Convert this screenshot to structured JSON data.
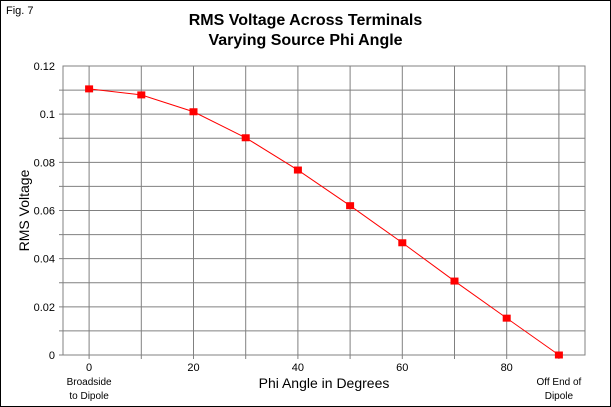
{
  "figure_label": "Fig. 7",
  "chart_data": {
    "type": "line",
    "title": [
      "RMS Voltage Across Terminals",
      "Varying Source Phi Angle"
    ],
    "xlabel": "Phi Angle in Degrees",
    "ylabel": "RMS Voltage",
    "xlim": [
      -5,
      95
    ],
    "ylim": [
      0,
      0.12
    ],
    "grid": true,
    "x_ticks": [
      0,
      20,
      40,
      60,
      80
    ],
    "x_tick_labels": [
      "0",
      "20",
      "40",
      "60",
      "80"
    ],
    "y_ticks": [
      0,
      0.02,
      0.04,
      0.06,
      0.08,
      0.1,
      0.12
    ],
    "y_tick_labels": [
      "0",
      "0.02",
      "0.04",
      "0.06",
      "0.08",
      "0.1",
      "0.12"
    ],
    "annotations": [
      {
        "text": [
          "Broadside",
          "to Dipole"
        ],
        "x": 0
      },
      {
        "text": [
          "Off End of",
          "Dipole"
        ],
        "x": 90
      }
    ],
    "series": [
      {
        "name": "RMS Voltage",
        "color": "#ff0000",
        "x": [
          0,
          10,
          20,
          30,
          40,
          50,
          60,
          70,
          80,
          90
        ],
        "values": [
          0.1105,
          0.108,
          0.101,
          0.0902,
          0.0768,
          0.062,
          0.0466,
          0.0307,
          0.0153,
          0.0
        ]
      }
    ]
  }
}
